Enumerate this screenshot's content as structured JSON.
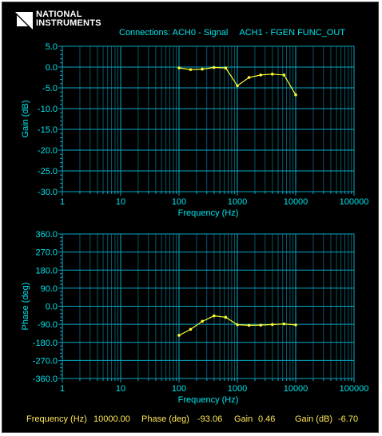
{
  "header": {
    "brand_line1": "NATIONAL",
    "brand_line2": "INSTRUMENTS",
    "connections_label": "Connections: ACH0 - Signal",
    "connections_ch1": "ACH1 - FGEN FUNC_OUT"
  },
  "colors": {
    "background": "#000000",
    "grid": "#0aa7c7",
    "axis_text": "#00e5ee",
    "trace": "#ffff33",
    "readout_text": "#ffe85a"
  },
  "chart_data": [
    {
      "type": "line",
      "ylabel": "Gain (dB)",
      "xlabel": "Frequency (Hz)",
      "xscale": "log",
      "xlim": [
        1,
        100000
      ],
      "ylim": [
        -30,
        5
      ],
      "x_ticks": [
        "1",
        "10",
        "100",
        "1000",
        "10000",
        "100000"
      ],
      "y_ticks": [
        "5.0",
        "0.0",
        "-5.0",
        "-10.0",
        "-15.0",
        "-20.0",
        "-25.0",
        "-30.0"
      ],
      "y_tick_values": [
        5,
        0,
        -5,
        -10,
        -15,
        -20,
        -25,
        -30
      ],
      "grid": true,
      "series": [
        {
          "x": [
            100,
            158,
            251,
            398,
            631,
            1000,
            1585,
            2512,
            3981,
            6310,
            10000
          ],
          "y": [
            -0.2,
            -0.6,
            -0.5,
            -0.1,
            -0.2,
            -4.5,
            -2.5,
            -1.9,
            -1.7,
            -1.9,
            -6.7
          ]
        }
      ]
    },
    {
      "type": "line",
      "ylabel": "Phase (deg)",
      "xlabel": "Frequency (Hz)",
      "xscale": "log",
      "xlim": [
        1,
        100000
      ],
      "ylim": [
        -360,
        360
      ],
      "x_ticks": [
        "1",
        "10",
        "100",
        "1000",
        "10000",
        "100000"
      ],
      "y_ticks": [
        "360.0",
        "270.0",
        "180.0",
        "90.0",
        "0.0",
        "-90.0",
        "-180.0",
        "-270.0",
        "-360.0"
      ],
      "y_tick_values": [
        360,
        270,
        180,
        90,
        0,
        -90,
        -180,
        -270,
        -360
      ],
      "grid": true,
      "series": [
        {
          "x": [
            100,
            158,
            251,
            398,
            631,
            1000,
            1585,
            2512,
            3981,
            6310,
            10000
          ],
          "y": [
            -145,
            -115,
            -75,
            -48,
            -55,
            -92,
            -95,
            -94,
            -91,
            -88,
            -93
          ]
        }
      ]
    }
  ],
  "readout": {
    "freq_label": "Frequency (Hz)",
    "freq_value": "10000.00",
    "phase_label": "Phase (deg)",
    "phase_value": "-93.06",
    "gain_label": "Gain",
    "gain_value": "0.46",
    "gaindb_label": "Gain (dB)",
    "gaindb_value": "-6.70"
  }
}
